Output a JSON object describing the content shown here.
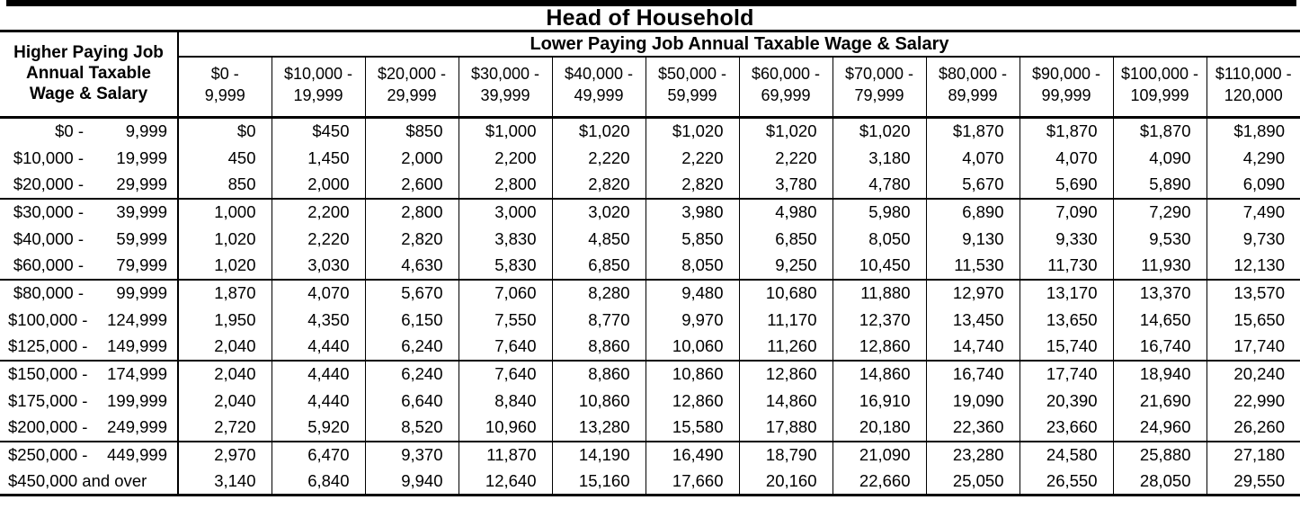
{
  "title": "Head of Household",
  "colors": {
    "text": "#000000",
    "background": "#ffffff",
    "rule": "#000000"
  },
  "table": {
    "row_header_lines": [
      "Higher Paying Job",
      "Annual Taxable",
      "Wage & Salary"
    ],
    "column_banner": "Lower Paying Job Annual Taxable Wage & Salary",
    "column_headers": [
      {
        "line1": "$0 -",
        "line2": "9,999"
      },
      {
        "line1": "$10,000 -",
        "line2": "19,999"
      },
      {
        "line1": "$20,000 -",
        "line2": "29,999"
      },
      {
        "line1": "$30,000 -",
        "line2": "39,999"
      },
      {
        "line1": "$40,000 -",
        "line2": "49,999"
      },
      {
        "line1": "$50,000 -",
        "line2": "59,999"
      },
      {
        "line1": "$60,000 -",
        "line2": "69,999"
      },
      {
        "line1": "$70,000 -",
        "line2": "79,999"
      },
      {
        "line1": "$80,000 -",
        "line2": "89,999"
      },
      {
        "line1": "$90,000 -",
        "line2": "99,999"
      },
      {
        "line1": "$100,000 -",
        "line2": "109,999"
      },
      {
        "line1": "$110,000 -",
        "line2": "120,000"
      }
    ],
    "rows": [
      {
        "range_from": "$0 -",
        "range_to": "9,999",
        "group_end": false,
        "values": [
          "$0",
          "$450",
          "$850",
          "$1,000",
          "$1,020",
          "$1,020",
          "$1,020",
          "$1,020",
          "$1,870",
          "$1,870",
          "$1,870",
          "$1,890"
        ]
      },
      {
        "range_from": "$10,000 -",
        "range_to": "19,999",
        "group_end": false,
        "values": [
          "450",
          "1,450",
          "2,000",
          "2,200",
          "2,220",
          "2,220",
          "2,220",
          "3,180",
          "4,070",
          "4,070",
          "4,090",
          "4,290"
        ]
      },
      {
        "range_from": "$20,000 -",
        "range_to": "29,999",
        "group_end": true,
        "values": [
          "850",
          "2,000",
          "2,600",
          "2,800",
          "2,820",
          "2,820",
          "3,780",
          "4,780",
          "5,670",
          "5,690",
          "5,890",
          "6,090"
        ]
      },
      {
        "range_from": "$30,000 -",
        "range_to": "39,999",
        "group_end": false,
        "values": [
          "1,000",
          "2,200",
          "2,800",
          "3,000",
          "3,020",
          "3,980",
          "4,980",
          "5,980",
          "6,890",
          "7,090",
          "7,290",
          "7,490"
        ]
      },
      {
        "range_from": "$40,000 -",
        "range_to": "59,999",
        "group_end": false,
        "values": [
          "1,020",
          "2,220",
          "2,820",
          "3,830",
          "4,850",
          "5,850",
          "6,850",
          "8,050",
          "9,130",
          "9,330",
          "9,530",
          "9,730"
        ]
      },
      {
        "range_from": "$60,000 -",
        "range_to": "79,999",
        "group_end": true,
        "values": [
          "1,020",
          "3,030",
          "4,630",
          "5,830",
          "6,850",
          "8,050",
          "9,250",
          "10,450",
          "11,530",
          "11,730",
          "11,930",
          "12,130"
        ]
      },
      {
        "range_from": "$80,000 -",
        "range_to": "99,999",
        "group_end": false,
        "values": [
          "1,870",
          "4,070",
          "5,670",
          "7,060",
          "8,280",
          "9,480",
          "10,680",
          "11,880",
          "12,970",
          "13,170",
          "13,370",
          "13,570"
        ]
      },
      {
        "range_from": "$100,000 -",
        "range_to": "124,999",
        "group_end": false,
        "values": [
          "1,950",
          "4,350",
          "6,150",
          "7,550",
          "8,770",
          "9,970",
          "11,170",
          "12,370",
          "13,450",
          "13,650",
          "14,650",
          "15,650"
        ]
      },
      {
        "range_from": "$125,000 -",
        "range_to": "149,999",
        "group_end": true,
        "values": [
          "2,040",
          "4,440",
          "6,240",
          "7,640",
          "8,860",
          "10,060",
          "11,260",
          "12,860",
          "14,740",
          "15,740",
          "16,740",
          "17,740"
        ]
      },
      {
        "range_from": "$150,000 -",
        "range_to": "174,999",
        "group_end": false,
        "values": [
          "2,040",
          "4,440",
          "6,240",
          "7,640",
          "8,860",
          "10,860",
          "12,860",
          "14,860",
          "16,740",
          "17,740",
          "18,940",
          "20,240"
        ]
      },
      {
        "range_from": "$175,000 -",
        "range_to": "199,999",
        "group_end": false,
        "values": [
          "2,040",
          "4,440",
          "6,640",
          "8,840",
          "10,860",
          "12,860",
          "14,860",
          "16,910",
          "19,090",
          "20,390",
          "21,690",
          "22,990"
        ]
      },
      {
        "range_from": "$200,000 -",
        "range_to": "249,999",
        "group_end": true,
        "values": [
          "2,720",
          "5,920",
          "8,520",
          "10,960",
          "13,280",
          "15,580",
          "17,880",
          "20,180",
          "22,360",
          "23,660",
          "24,960",
          "26,260"
        ]
      },
      {
        "range_from": "$250,000 -",
        "range_to": "449,999",
        "group_end": false,
        "values": [
          "2,970",
          "6,470",
          "9,370",
          "11,870",
          "14,190",
          "16,490",
          "18,790",
          "21,090",
          "23,280",
          "24,580",
          "25,880",
          "27,180"
        ]
      },
      {
        "range_from": "$450,000 and over",
        "range_to": "",
        "group_end": false,
        "values": [
          "3,140",
          "6,840",
          "9,940",
          "12,640",
          "15,160",
          "17,660",
          "20,160",
          "22,660",
          "25,050",
          "26,550",
          "28,050",
          "29,550"
        ]
      }
    ]
  }
}
